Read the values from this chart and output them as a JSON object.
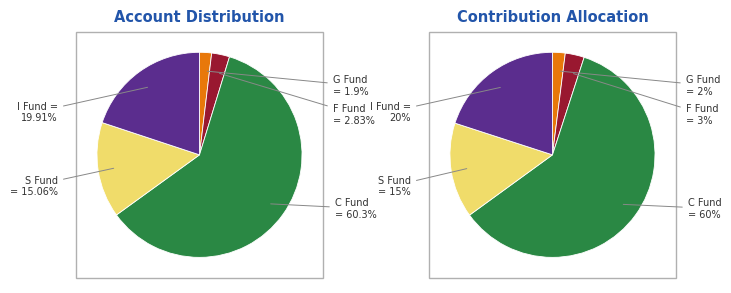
{
  "chart1_title": "Account Distribution",
  "chart2_title": "Contribution Allocation",
  "funds": [
    "G Fund",
    "F Fund",
    "C Fund",
    "S Fund",
    "I Fund"
  ],
  "colors": [
    "#d8d0c0",
    "#e07820",
    "#a01830",
    "#2e8b47",
    "#f0dc70",
    "#5b2d8e"
  ],
  "pie_colors": [
    "#d0c8b8",
    "#e07820",
    "#9a1828",
    "#2a8844",
    "#f0dc6a",
    "#5b2d8e"
  ],
  "chart1_values": [
    1.9,
    2.83,
    60.3,
    15.06,
    19.91
  ],
  "chart2_values": [
    2,
    3,
    60,
    15,
    20
  ],
  "chart1_label_texts": [
    "G Fund\n= 1.9%",
    "F Fund\n= 2.83%",
    "C Fund\n= 60.3%",
    "S Fund\n= 15.06%",
    "I Fund =\n19.91%"
  ],
  "chart2_label_texts": [
    "G Fund\n= 2%",
    "F Fund\n= 3%",
    "C Fund\n= 60%",
    "S Fund\n= 15%",
    "I Fund =\n20%"
  ],
  "title_color": "#2255aa",
  "label_color": "#333333",
  "bg_color": "#ffffff",
  "border_color": "#b0b0b0",
  "startangle": 90,
  "label_fontsize": 7.0,
  "title_fontsize": 10.5
}
